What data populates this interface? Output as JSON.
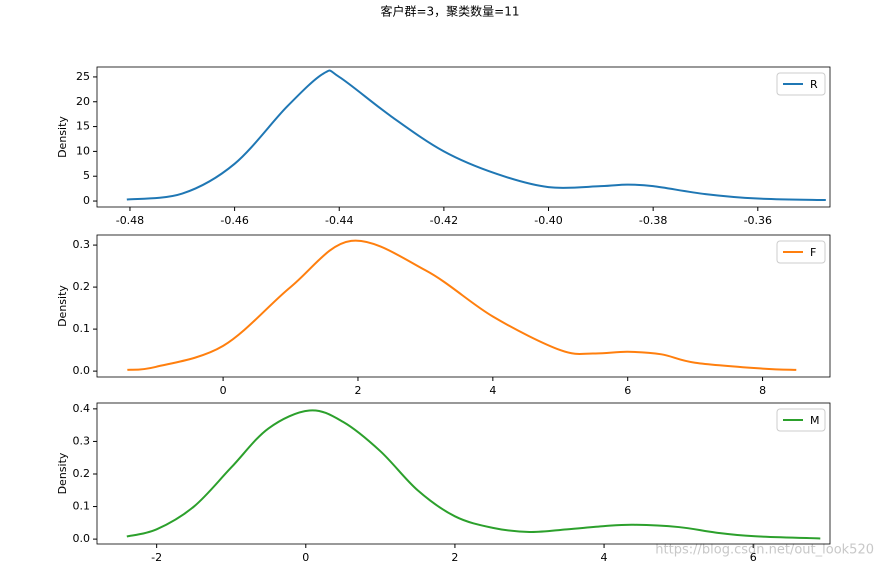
{
  "title": "客户群=3，聚类数量=11",
  "watermark": "https://blog.csdn.net/out_look520",
  "chart_data": [
    {
      "type": "line",
      "ylabel": "Density",
      "legend": "upper right",
      "xlim": [
        -0.4863,
        -0.3462
      ],
      "ylim": [
        -1.2,
        27.0
      ],
      "xticks": [
        -0.48,
        -0.46,
        -0.44,
        -0.42,
        {
          "value": -0.4,
          "label": "-0.40"
        },
        -0.38,
        -0.36
      ],
      "yticks": [
        0,
        5,
        10,
        15,
        20,
        25
      ],
      "series": [
        {
          "name": "R",
          "color": "#1f77b4",
          "x": [
            -0.4806,
            -0.47,
            -0.46,
            -0.45,
            -0.443,
            -0.44,
            -0.43,
            -0.42,
            -0.41,
            -0.4,
            -0.39,
            -0.385,
            -0.38,
            -0.37,
            -0.36,
            -0.347
          ],
          "values": [
            0.3,
            1.5,
            7.5,
            19,
            25.7,
            25,
            17,
            10,
            5.5,
            2.8,
            3.0,
            3.3,
            3.0,
            1.4,
            0.5,
            0.2
          ]
        }
      ]
    },
    {
      "type": "line",
      "ylabel": "Density",
      "legend": "upper right",
      "xlim": [
        -1.87,
        9.0
      ],
      "ylim": [
        -0.014,
        0.324
      ],
      "xticks": [
        0,
        2,
        4,
        6,
        8
      ],
      "yticks": [
        {
          "value": 0,
          "label": "0.0"
        },
        0.1,
        0.2,
        0.3
      ],
      "series": [
        {
          "name": "F",
          "color": "#ff7f0e",
          "x": [
            -1.42,
            -1,
            0,
            1,
            1.9,
            3,
            4,
            5,
            5.5,
            6,
            6.5,
            7,
            8,
            8.5
          ],
          "values": [
            0.003,
            0.01,
            0.06,
            0.2,
            0.31,
            0.24,
            0.13,
            0.05,
            0.042,
            0.046,
            0.04,
            0.02,
            0.006,
            0.003
          ]
        }
      ]
    },
    {
      "type": "line",
      "ylabel": "Density",
      "legend": "upper right",
      "xlim": [
        -2.8,
        7.03
      ],
      "ylim": [
        -0.015,
        0.418
      ],
      "xticks": [
        -2,
        0,
        2,
        4,
        6
      ],
      "yticks": [
        {
          "value": 0,
          "label": "0.0"
        },
        0.1,
        0.2,
        0.3,
        0.4
      ],
      "series": [
        {
          "name": "M",
          "color": "#2ca02c",
          "x": [
            -2.4,
            -2,
            -1.5,
            -1,
            -0.5,
            0.05,
            0.5,
            1,
            1.5,
            2,
            2.5,
            3,
            3.5,
            4,
            4.4,
            5,
            5.5,
            6,
            6.9
          ],
          "values": [
            0.008,
            0.03,
            0.1,
            0.22,
            0.34,
            0.395,
            0.36,
            0.27,
            0.15,
            0.07,
            0.035,
            0.022,
            0.03,
            0.04,
            0.044,
            0.037,
            0.02,
            0.009,
            0.002
          ]
        }
      ]
    }
  ]
}
